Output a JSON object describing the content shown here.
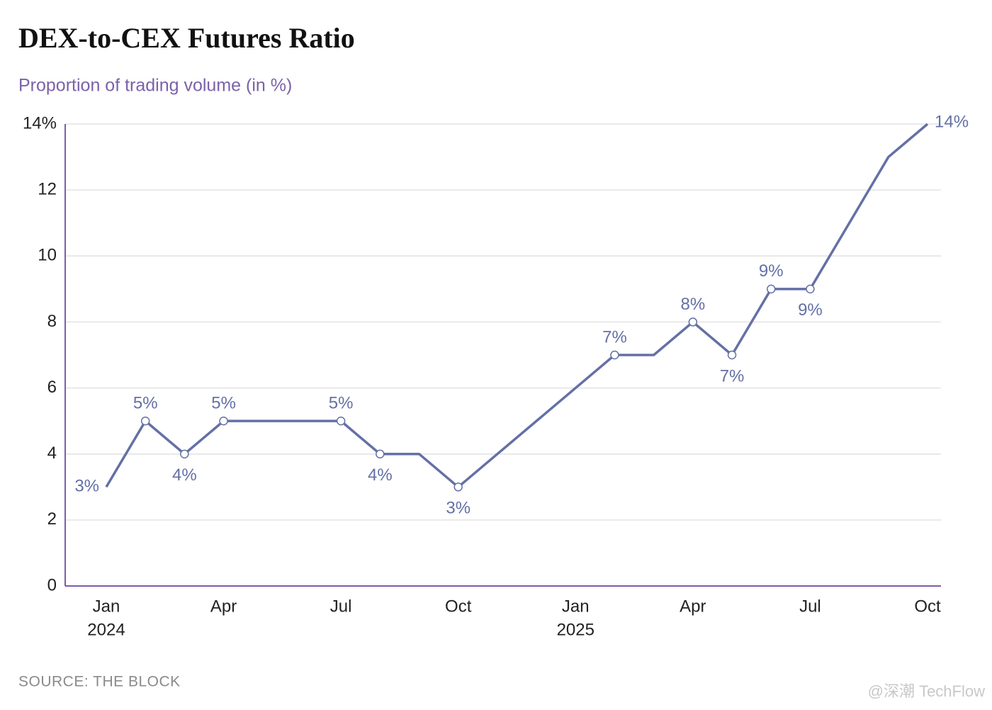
{
  "chart_data": {
    "type": "line",
    "title": "DEX-to-CEX Futures Ratio",
    "subtitle": "Proportion of trading volume (in %)",
    "source": "SOURCE: THE BLOCK",
    "watermark": "@深潮 TechFlow",
    "x": [
      "2024-01",
      "2024-02",
      "2024-03",
      "2024-04",
      "2024-05",
      "2024-06",
      "2024-07",
      "2024-08",
      "2024-09",
      "2024-10",
      "2024-11",
      "2024-12",
      "2025-01",
      "2025-02",
      "2025-03",
      "2025-04",
      "2025-05",
      "2025-06",
      "2025-07",
      "2025-08",
      "2025-09",
      "2025-10"
    ],
    "values": [
      3,
      5,
      4,
      5,
      5,
      5,
      5,
      4,
      4,
      3,
      4,
      5,
      6,
      7,
      7,
      8,
      7,
      9,
      9,
      11,
      13,
      14
    ],
    "value_labels": [
      "3%",
      "5%",
      "4%",
      "5%",
      null,
      null,
      "5%",
      "4%",
      null,
      "3%",
      null,
      null,
      null,
      "7%",
      null,
      "8%",
      "7%",
      "9%",
      "9%",
      null,
      null,
      "14%"
    ],
    "color": "#6470a6",
    "ylim": [
      0,
      14
    ],
    "yticks": [
      0,
      2,
      4,
      6,
      8,
      10,
      12,
      {
        "value": 14,
        "label": "14%"
      }
    ],
    "xticks": [
      {
        "value": "2024-01",
        "label": "Jan"
      },
      {
        "value": "2024-04",
        "label": "Apr"
      },
      {
        "value": "2024-07",
        "label": "Jul"
      },
      {
        "value": "2024-10",
        "label": "Oct"
      },
      {
        "value": "2025-01",
        "label": "Jan"
      },
      {
        "value": "2025-04",
        "label": "Apr"
      },
      {
        "value": "2025-07",
        "label": "Jul"
      },
      {
        "value": "2025-10",
        "label": "Oct"
      }
    ],
    "xticks_secondary": [
      {
        "value": "2024-01",
        "label": "2024"
      },
      {
        "value": "2025-01",
        "label": "2025"
      }
    ],
    "grid": true
  }
}
